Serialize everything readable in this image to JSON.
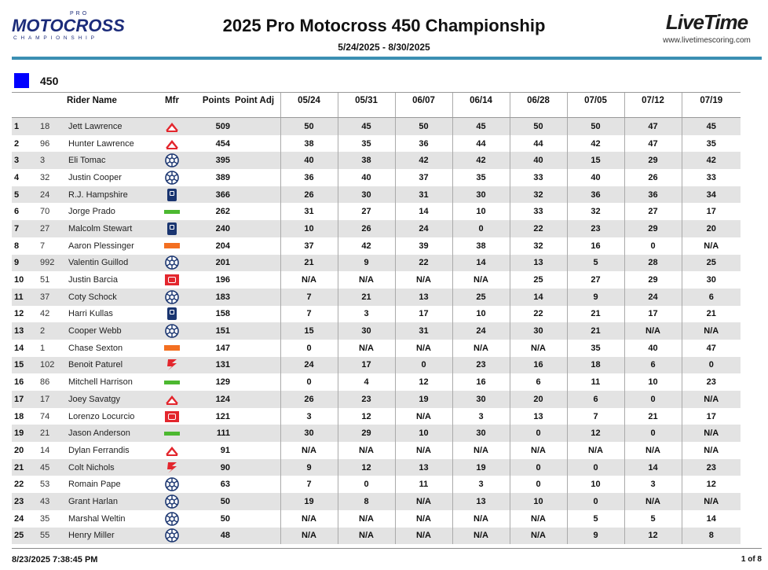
{
  "header": {
    "logo_left": {
      "pro": "PRO",
      "main": "MOTOCROSS",
      "sub": "CHAMPIONSHIP"
    },
    "title": "2025 Pro Motocross 450 Championship",
    "date_range": "5/24/2025 - 8/30/2025",
    "logo_right": {
      "brand_a": "Live",
      "brand_b": "Time",
      "url": "www.livetimescoring.com"
    }
  },
  "class": {
    "name": "450",
    "color": "#0000ff"
  },
  "columns": {
    "rider": "Rider Name",
    "mfr": "Mfr",
    "points": "Points",
    "adj": "Point Adj",
    "races": [
      "05/24",
      "05/31",
      "06/07",
      "06/14",
      "06/28",
      "07/05",
      "07/12",
      "07/19"
    ]
  },
  "brand_colors": {
    "honda": "#e3262d",
    "yamaha": "#1a3570",
    "husqvarna": "#1a3570",
    "kawasaki": "#4cb830",
    "ktm": "#f36f21",
    "gasgas": "#e3262d",
    "suzuki": "#e3262d"
  },
  "rows": [
    {
      "pos": "1",
      "num": "18",
      "name": "Jett Lawrence",
      "mfr": "honda",
      "mfr_icon": "honda-icon",
      "pts": "509",
      "adj": "",
      "r": [
        "50",
        "45",
        "50",
        "45",
        "50",
        "50",
        "47",
        "45"
      ]
    },
    {
      "pos": "2",
      "num": "96",
      "name": "Hunter Lawrence",
      "mfr": "honda",
      "mfr_icon": "honda-icon",
      "pts": "454",
      "adj": "",
      "r": [
        "38",
        "35",
        "36",
        "44",
        "44",
        "42",
        "47",
        "35"
      ]
    },
    {
      "pos": "3",
      "num": "3",
      "name": "Eli Tomac",
      "mfr": "yamaha",
      "mfr_icon": "yamaha-icon",
      "pts": "395",
      "adj": "",
      "r": [
        "40",
        "38",
        "42",
        "42",
        "40",
        "15",
        "29",
        "42"
      ]
    },
    {
      "pos": "4",
      "num": "32",
      "name": "Justin Cooper",
      "mfr": "yamaha",
      "mfr_icon": "yamaha-icon",
      "pts": "389",
      "adj": "",
      "r": [
        "36",
        "40",
        "37",
        "35",
        "33",
        "40",
        "26",
        "33"
      ]
    },
    {
      "pos": "5",
      "num": "24",
      "name": "R.J. Hampshire",
      "mfr": "husqvarna",
      "mfr_icon": "husqvarna-icon",
      "pts": "366",
      "adj": "",
      "r": [
        "26",
        "30",
        "31",
        "30",
        "32",
        "36",
        "36",
        "34"
      ]
    },
    {
      "pos": "6",
      "num": "70",
      "name": "Jorge Prado",
      "mfr": "kawasaki",
      "mfr_icon": "kawasaki-icon",
      "pts": "262",
      "adj": "",
      "r": [
        "31",
        "27",
        "14",
        "10",
        "33",
        "32",
        "27",
        "17"
      ]
    },
    {
      "pos": "7",
      "num": "27",
      "name": "Malcolm Stewart",
      "mfr": "husqvarna",
      "mfr_icon": "husqvarna-icon",
      "pts": "240",
      "adj": "",
      "r": [
        "10",
        "26",
        "24",
        "0",
        "22",
        "23",
        "29",
        "20"
      ]
    },
    {
      "pos": "8",
      "num": "7",
      "name": "Aaron Plessinger",
      "mfr": "ktm",
      "mfr_icon": "ktm-icon",
      "pts": "204",
      "adj": "",
      "r": [
        "37",
        "42",
        "39",
        "38",
        "32",
        "16",
        "0",
        "N/A"
      ]
    },
    {
      "pos": "9",
      "num": "992",
      "name": "Valentin Guillod",
      "mfr": "yamaha",
      "mfr_icon": "yamaha-icon",
      "pts": "201",
      "adj": "",
      "r": [
        "21",
        "9",
        "22",
        "14",
        "13",
        "5",
        "28",
        "25"
      ]
    },
    {
      "pos": "10",
      "num": "51",
      "name": "Justin Barcia",
      "mfr": "gasgas",
      "mfr_icon": "gasgas-icon",
      "pts": "196",
      "adj": "",
      "r": [
        "N/A",
        "N/A",
        "N/A",
        "N/A",
        "25",
        "27",
        "29",
        "30"
      ]
    },
    {
      "pos": "11",
      "num": "37",
      "name": "Coty Schock",
      "mfr": "yamaha",
      "mfr_icon": "yamaha-icon",
      "pts": "183",
      "adj": "",
      "r": [
        "7",
        "21",
        "13",
        "25",
        "14",
        "9",
        "24",
        "6"
      ]
    },
    {
      "pos": "12",
      "num": "42",
      "name": "Harri Kullas",
      "mfr": "husqvarna",
      "mfr_icon": "husqvarna-icon",
      "pts": "158",
      "adj": "",
      "r": [
        "7",
        "3",
        "17",
        "10",
        "22",
        "21",
        "17",
        "21"
      ]
    },
    {
      "pos": "13",
      "num": "2",
      "name": "Cooper Webb",
      "mfr": "yamaha",
      "mfr_icon": "yamaha-icon",
      "pts": "151",
      "adj": "",
      "r": [
        "15",
        "30",
        "31",
        "24",
        "30",
        "21",
        "N/A",
        "N/A"
      ]
    },
    {
      "pos": "14",
      "num": "1",
      "name": "Chase Sexton",
      "mfr": "ktm",
      "mfr_icon": "ktm-icon",
      "pts": "147",
      "adj": "",
      "r": [
        "0",
        "N/A",
        "N/A",
        "N/A",
        "N/A",
        "35",
        "40",
        "47"
      ]
    },
    {
      "pos": "15",
      "num": "102",
      "name": "Benoit Paturel",
      "mfr": "suzuki",
      "mfr_icon": "suzuki-icon",
      "pts": "131",
      "adj": "",
      "r": [
        "24",
        "17",
        "0",
        "23",
        "16",
        "18",
        "6",
        "0"
      ]
    },
    {
      "pos": "16",
      "num": "86",
      "name": "Mitchell Harrison",
      "mfr": "kawasaki",
      "mfr_icon": "kawasaki-icon",
      "pts": "129",
      "adj": "",
      "r": [
        "0",
        "4",
        "12",
        "16",
        "6",
        "11",
        "10",
        "23"
      ]
    },
    {
      "pos": "17",
      "num": "17",
      "name": "Joey Savatgy",
      "mfr": "honda",
      "mfr_icon": "honda-icon",
      "pts": "124",
      "adj": "",
      "r": [
        "26",
        "23",
        "19",
        "30",
        "20",
        "6",
        "0",
        "N/A"
      ]
    },
    {
      "pos": "18",
      "num": "74",
      "name": "Lorenzo Locurcio",
      "mfr": "gasgas",
      "mfr_icon": "gasgas-icon",
      "pts": "121",
      "adj": "",
      "r": [
        "3",
        "12",
        "N/A",
        "3",
        "13",
        "7",
        "21",
        "17"
      ]
    },
    {
      "pos": "19",
      "num": "21",
      "name": "Jason Anderson",
      "mfr": "kawasaki",
      "mfr_icon": "kawasaki-icon",
      "pts": "111",
      "adj": "",
      "r": [
        "30",
        "29",
        "10",
        "30",
        "0",
        "12",
        "0",
        "N/A"
      ]
    },
    {
      "pos": "20",
      "num": "14",
      "name": "Dylan Ferrandis",
      "mfr": "honda",
      "mfr_icon": "honda-icon",
      "pts": "91",
      "adj": "",
      "r": [
        "N/A",
        "N/A",
        "N/A",
        "N/A",
        "N/A",
        "N/A",
        "N/A",
        "N/A"
      ]
    },
    {
      "pos": "21",
      "num": "45",
      "name": "Colt Nichols",
      "mfr": "suzuki",
      "mfr_icon": "suzuki-icon",
      "pts": "90",
      "adj": "",
      "r": [
        "9",
        "12",
        "13",
        "19",
        "0",
        "0",
        "14",
        "23"
      ]
    },
    {
      "pos": "22",
      "num": "53",
      "name": "Romain Pape",
      "mfr": "yamaha",
      "mfr_icon": "yamaha-icon",
      "pts": "63",
      "adj": "",
      "r": [
        "7",
        "0",
        "11",
        "3",
        "0",
        "10",
        "3",
        "12"
      ]
    },
    {
      "pos": "23",
      "num": "43",
      "name": "Grant Harlan",
      "mfr": "yamaha",
      "mfr_icon": "yamaha-icon",
      "pts": "50",
      "adj": "",
      "r": [
        "19",
        "8",
        "N/A",
        "13",
        "10",
        "0",
        "N/A",
        "N/A"
      ]
    },
    {
      "pos": "24",
      "num": "35",
      "name": "Marshal Weltin",
      "mfr": "yamaha",
      "mfr_icon": "yamaha-icon",
      "pts": "50",
      "adj": "",
      "r": [
        "N/A",
        "N/A",
        "N/A",
        "N/A",
        "N/A",
        "5",
        "5",
        "14"
      ]
    },
    {
      "pos": "25",
      "num": "55",
      "name": "Henry Miller",
      "mfr": "yamaha",
      "mfr_icon": "yamaha-icon",
      "pts": "48",
      "adj": "",
      "r": [
        "N/A",
        "N/A",
        "N/A",
        "N/A",
        "N/A",
        "9",
        "12",
        "8"
      ]
    }
  ],
  "footer": {
    "generated": "8/23/2025 7:38:45 PM",
    "page": "1 of 8"
  }
}
